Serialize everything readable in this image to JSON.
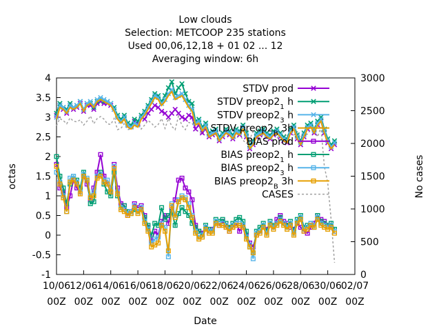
{
  "chart_data": {
    "type": "line",
    "title_lines": [
      "Low clouds",
      "Selection: METCOOP    235 stations",
      "Used  00,06,12,18 + 01 02 ... 12",
      "Averaging window:  6h"
    ],
    "xlabel": "Date",
    "ylabel": "octas",
    "y2label": "No cases",
    "xlim": [
      0,
      22
    ],
    "ylim": [
      -1,
      4
    ],
    "y2lim": [
      0,
      3000
    ],
    "xticks": [
      {
        "x": 0,
        "line1": "10/06",
        "line2": "00Z"
      },
      {
        "x": 2,
        "line1": "12/06",
        "line2": "00Z"
      },
      {
        "x": 4,
        "line1": "14/06",
        "line2": "00Z"
      },
      {
        "x": 6,
        "line1": "16/06",
        "line2": "00Z"
      },
      {
        "x": 8,
        "line1": "18/06",
        "line2": "00Z"
      },
      {
        "x": 10,
        "line1": "20/06",
        "line2": "00Z"
      },
      {
        "x": 12,
        "line1": "22/06",
        "line2": "00Z"
      },
      {
        "x": 14,
        "line1": "24/06",
        "line2": "00Z"
      },
      {
        "x": 16,
        "line1": "26/06",
        "line2": "00Z"
      },
      {
        "x": 18,
        "line1": "28/06",
        "line2": "00Z"
      },
      {
        "x": 20,
        "line1": "30/06",
        "line2": "00Z"
      },
      {
        "x": 22,
        "line1": "02/07",
        "line2": "00Z"
      }
    ],
    "yticks": [
      -1,
      -0.5,
      0,
      0.5,
      1,
      1.5,
      2,
      2.5,
      3,
      3.5,
      4
    ],
    "y2ticks": [
      0,
      500,
      1000,
      1500,
      2000,
      2500,
      3000
    ],
    "grid": false,
    "legend_position": "top-right",
    "x": [
      0,
      0.25,
      0.5,
      0.75,
      1,
      1.25,
      1.5,
      1.75,
      2,
      2.25,
      2.5,
      2.75,
      3,
      3.25,
      3.5,
      3.75,
      4,
      4.25,
      4.5,
      4.75,
      5,
      5.25,
      5.5,
      5.75,
      6,
      6.25,
      6.5,
      6.75,
      7,
      7.25,
      7.5,
      7.75,
      8,
      8.25,
      8.5,
      8.75,
      9,
      9.25,
      9.5,
      9.75,
      10,
      10.25,
      10.5,
      10.75,
      11,
      11.25,
      11.5,
      11.75,
      12,
      12.25,
      12.5,
      12.75,
      13,
      13.25,
      13.5,
      13.75,
      14,
      14.25,
      14.5,
      14.75,
      15,
      15.25,
      15.5,
      15.75,
      16,
      16.25,
      16.5,
      16.75,
      17,
      17.25,
      17.5,
      17.75,
      18,
      18.25,
      18.5,
      18.75,
      19,
      19.25,
      19.5,
      19.75,
      20,
      20.25,
      20.5
    ],
    "series": [
      {
        "name": "STDV prod",
        "axis": "y",
        "color": "#9400d3",
        "marker": "x",
        "values": [
          3.05,
          3.3,
          3.2,
          3.1,
          3.3,
          3.2,
          3.25,
          3.35,
          3.15,
          3.3,
          3.3,
          3.2,
          3.35,
          3.4,
          3.35,
          3.35,
          3.3,
          3.2,
          3.0,
          2.9,
          3.0,
          2.8,
          2.75,
          2.9,
          2.85,
          3.0,
          2.95,
          3.1,
          3.2,
          3.3,
          3.25,
          3.15,
          3.1,
          3.0,
          3.1,
          3.2,
          3.1,
          3.0,
          2.95,
          3.05,
          3.0,
          2.7,
          2.8,
          2.6,
          2.7,
          2.5,
          2.55,
          2.6,
          2.4,
          2.5,
          2.6,
          2.55,
          2.45,
          2.6,
          2.55,
          2.7,
          2.5,
          2.2,
          2.3,
          2.5,
          2.55,
          2.6,
          2.5,
          2.45,
          2.55,
          2.6,
          2.5,
          2.4,
          2.35,
          2.6,
          2.7,
          2.45,
          2.3,
          2.5,
          2.7,
          2.75,
          2.6,
          2.8,
          2.9,
          2.6,
          2.35,
          2.2,
          2.3
        ]
      },
      {
        "name": "STDV preop2",
        "sub": "1",
        "tail": "h",
        "axis": "y",
        "color": "#009e73",
        "marker": "x",
        "values": [
          3.1,
          3.35,
          3.25,
          3.2,
          3.35,
          3.25,
          3.3,
          3.4,
          3.2,
          3.35,
          3.35,
          3.25,
          3.4,
          3.45,
          3.4,
          3.4,
          3.35,
          3.25,
          3.05,
          2.95,
          3.05,
          2.85,
          2.8,
          2.95,
          2.9,
          3.05,
          3.15,
          3.3,
          3.45,
          3.6,
          3.55,
          3.4,
          3.55,
          3.75,
          3.9,
          3.6,
          3.75,
          3.85,
          3.6,
          3.4,
          3.35,
          2.9,
          2.95,
          2.75,
          2.85,
          2.6,
          2.65,
          2.7,
          2.5,
          2.6,
          2.7,
          2.65,
          2.55,
          2.7,
          2.65,
          2.8,
          2.6,
          2.3,
          2.4,
          2.6,
          2.65,
          2.7,
          2.6,
          2.55,
          2.65,
          2.7,
          2.6,
          2.5,
          2.45,
          2.7,
          2.8,
          2.55,
          2.4,
          2.6,
          2.8,
          2.85,
          2.7,
          2.9,
          3.0,
          2.7,
          2.45,
          2.3,
          2.4
        ]
      },
      {
        "name": "STDV preop2",
        "sub": "3",
        "tail": "h",
        "axis": "y",
        "color": "#56b4e9",
        "marker": "x",
        "values": [
          3.0,
          3.3,
          3.25,
          3.15,
          3.3,
          3.25,
          3.3,
          3.4,
          3.2,
          3.35,
          3.4,
          3.3,
          3.45,
          3.5,
          3.45,
          3.4,
          3.35,
          3.2,
          3.0,
          2.9,
          3.0,
          2.8,
          2.75,
          2.85,
          2.8,
          3.0,
          3.1,
          3.25,
          3.4,
          3.55,
          3.5,
          3.35,
          3.45,
          3.6,
          3.7,
          3.5,
          3.55,
          3.6,
          3.45,
          3.3,
          3.2,
          2.85,
          2.9,
          2.7,
          2.8,
          2.55,
          2.6,
          2.65,
          2.45,
          2.55,
          2.65,
          2.6,
          2.5,
          2.65,
          2.6,
          2.75,
          2.55,
          2.25,
          2.35,
          2.55,
          2.6,
          2.65,
          2.55,
          2.5,
          2.6,
          2.65,
          2.55,
          2.45,
          2.4,
          2.65,
          2.75,
          2.5,
          2.35,
          2.55,
          2.75,
          2.8,
          2.65,
          2.85,
          2.95,
          2.65,
          2.4,
          2.25,
          2.35
        ]
      },
      {
        "name": "STDV preop2",
        "sub": "B",
        "tail": "3h",
        "axis": "y",
        "color": "#e69f00",
        "marker": "none",
        "values": [
          2.95,
          3.25,
          3.2,
          3.1,
          3.25,
          3.2,
          3.25,
          3.35,
          3.15,
          3.3,
          3.35,
          3.25,
          3.4,
          3.45,
          3.4,
          3.35,
          3.3,
          3.15,
          2.95,
          2.85,
          2.95,
          2.75,
          2.7,
          2.8,
          2.75,
          2.95,
          3.05,
          3.2,
          3.35,
          3.5,
          3.45,
          3.3,
          3.4,
          3.55,
          3.65,
          3.45,
          3.5,
          3.55,
          3.4,
          3.25,
          3.15,
          2.8,
          2.85,
          2.65,
          2.75,
          2.5,
          2.55,
          2.6,
          2.4,
          2.5,
          2.6,
          2.55,
          2.45,
          2.6,
          2.55,
          2.7,
          2.5,
          2.2,
          2.3,
          2.5,
          2.55,
          2.6,
          2.5,
          2.45,
          2.55,
          2.6,
          2.5,
          2.4,
          2.35,
          2.6,
          2.7,
          2.45,
          2.3,
          2.5,
          2.7,
          2.75,
          2.6,
          2.8,
          2.9,
          2.6,
          2.35,
          2.2,
          2.3
        ]
      },
      {
        "name": "BIAS prod",
        "axis": "y",
        "color": "#9400d3",
        "marker": "square",
        "values": [
          1.8,
          1.2,
          1.1,
          0.7,
          1.0,
          1.4,
          1.2,
          1.1,
          1.5,
          1.3,
          0.9,
          1.2,
          1.6,
          2.05,
          1.5,
          1.3,
          1.1,
          1.8,
          1.2,
          0.8,
          0.75,
          0.5,
          0.6,
          0.8,
          0.7,
          0.75,
          0.5,
          0.2,
          -0.15,
          0.1,
          0.0,
          0.35,
          0.5,
          0.3,
          0.7,
          0.9,
          1.4,
          1.45,
          1.2,
          1.1,
          0.9,
          0.25,
          0.1,
          0.05,
          0.2,
          0.1,
          0.15,
          0.3,
          0.25,
          0.35,
          0.2,
          0.1,
          0.2,
          0.3,
          0.1,
          0.25,
          0.0,
          -0.2,
          -0.3,
          0.0,
          0.1,
          0.2,
          0.15,
          0.3,
          0.2,
          0.4,
          0.5,
          0.35,
          0.3,
          0.2,
          0.15,
          0.3,
          0.2,
          0.1,
          0.05,
          0.2,
          0.3,
          0.5,
          0.4,
          0.35,
          0.25,
          0.2,
          0.1
        ]
      },
      {
        "name": "BIAS preop2",
        "sub": "1",
        "tail": "h",
        "axis": "y",
        "color": "#009e73",
        "marker": "square",
        "values": [
          2.0,
          1.5,
          1.2,
          0.8,
          1.3,
          1.5,
          1.4,
          1.2,
          1.6,
          1.4,
          0.8,
          0.85,
          1.5,
          1.6,
          1.3,
          1.1,
          1.0,
          1.6,
          1.0,
          0.7,
          0.75,
          0.6,
          0.55,
          0.65,
          0.6,
          0.7,
          0.45,
          0.25,
          0.0,
          0.3,
          0.25,
          0.7,
          0.4,
          0.5,
          0.6,
          0.25,
          0.55,
          0.7,
          0.6,
          0.5,
          0.3,
          0.2,
          0.1,
          0.0,
          0.25,
          0.15,
          0.1,
          0.4,
          0.35,
          0.4,
          0.3,
          0.2,
          0.3,
          0.4,
          0.45,
          0.35,
          0.1,
          -0.3,
          -0.45,
          0.1,
          0.2,
          0.3,
          0.1,
          0.35,
          0.25,
          0.3,
          0.45,
          0.3,
          0.25,
          0.35,
          0.1,
          0.4,
          0.5,
          0.2,
          0.25,
          0.3,
          0.2,
          0.5,
          0.35,
          0.3,
          0.25,
          0.3,
          0.15
        ]
      },
      {
        "name": "BIAS preop2",
        "sub": "3",
        "tail": "h",
        "axis": "y",
        "color": "#56b4e9",
        "marker": "square",
        "values": [
          1.6,
          1.35,
          1.0,
          0.6,
          1.45,
          1.5,
          1.35,
          1.1,
          1.55,
          1.45,
          1.0,
          1.1,
          1.5,
          1.55,
          1.4,
          1.4,
          1.2,
          1.75,
          1.1,
          0.7,
          0.65,
          0.55,
          0.6,
          0.75,
          0.6,
          0.7,
          0.35,
          0.15,
          -0.2,
          -0.1,
          -0.05,
          0.3,
          0.2,
          -0.55,
          0.8,
          0.5,
          0.9,
          1.0,
          0.95,
          0.8,
          0.5,
          0.1,
          -0.05,
          0.0,
          0.2,
          0.1,
          0.1,
          0.35,
          0.3,
          0.3,
          0.25,
          0.15,
          0.25,
          0.3,
          0.3,
          0.25,
          -0.05,
          -0.25,
          -0.6,
          0.05,
          0.1,
          0.25,
          0.05,
          0.3,
          0.2,
          0.3,
          0.4,
          0.3,
          0.2,
          0.3,
          0.05,
          0.35,
          0.45,
          0.15,
          0.2,
          0.3,
          0.25,
          0.45,
          0.3,
          0.25,
          0.2,
          0.25,
          0.1
        ]
      },
      {
        "name": "BIAS preop2",
        "sub": "B",
        "tail": "3h",
        "axis": "y",
        "color": "#e69f00",
        "marker": "square",
        "values": [
          1.75,
          1.3,
          0.95,
          0.6,
          1.35,
          1.4,
          1.3,
          1.05,
          1.5,
          1.4,
          0.95,
          1.0,
          1.45,
          1.5,
          1.35,
          1.3,
          1.1,
          1.7,
          1.05,
          0.65,
          0.6,
          0.5,
          0.55,
          0.7,
          0.55,
          0.65,
          0.3,
          0.1,
          -0.3,
          -0.25,
          -0.2,
          0.25,
          0.1,
          -0.4,
          0.75,
          0.45,
          0.85,
          0.95,
          0.9,
          0.7,
          0.45,
          0.05,
          -0.1,
          -0.05,
          0.15,
          0.05,
          0.05,
          0.3,
          0.25,
          0.25,
          0.2,
          0.1,
          0.2,
          0.25,
          0.25,
          0.2,
          -0.1,
          -0.3,
          -0.45,
          0.0,
          0.05,
          0.2,
          0.0,
          0.25,
          0.15,
          0.25,
          0.35,
          0.25,
          0.15,
          0.25,
          0.0,
          0.3,
          0.4,
          0.1,
          0.15,
          0.25,
          0.2,
          0.4,
          0.25,
          0.2,
          0.15,
          0.2,
          0.05
        ]
      },
      {
        "name": "CASES",
        "axis": "y2",
        "color": "#a0a0a0",
        "marker": "none",
        "dashed": true,
        "values": [
          2270,
          2380,
          2350,
          2300,
          2390,
          2340,
          2330,
          2360,
          2280,
          2340,
          2420,
          2300,
          2380,
          2410,
          2370,
          2300,
          2290,
          2380,
          2210,
          2230,
          2300,
          2210,
          2220,
          2250,
          2330,
          2220,
          2280,
          2350,
          2310,
          2250,
          2290,
          2380,
          2230,
          2380,
          2260,
          2210,
          2420,
          2270,
          2210,
          2320,
          2310,
          2210,
          2180,
          2130,
          2240,
          2110,
          2170,
          2130,
          2050,
          2130,
          2170,
          2100,
          2110,
          2070,
          2150,
          2050,
          2000,
          2070,
          2180,
          2080,
          2060,
          2140,
          2160,
          2060,
          2150,
          2100,
          2050,
          2180,
          2100,
          2240,
          2130,
          2180,
          2090,
          2170,
          2140,
          2210,
          2220,
          2100,
          2250,
          1650,
          1400,
          830,
          180
        ]
      }
    ]
  }
}
